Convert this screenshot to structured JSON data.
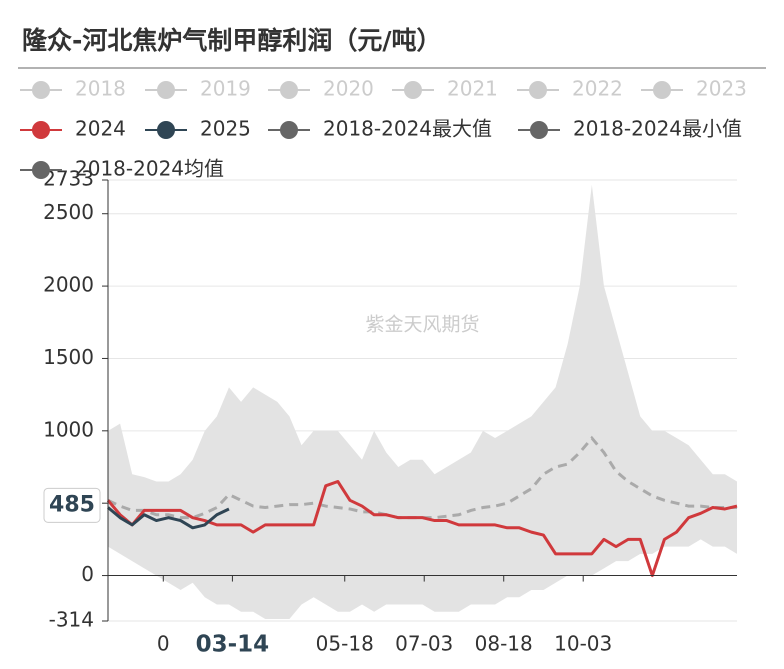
{
  "chart_data": {
    "type": "line",
    "title": "隆众-河北焦炉气制甲醇利润（元/吨）",
    "watermark": "紫金天风期货",
    "inactive_legend": [
      "2018",
      "2019",
      "2020",
      "2021",
      "2022",
      "2023"
    ],
    "inactive_color": "#cccccc",
    "x": [
      1,
      8,
      15,
      22,
      29,
      36,
      43,
      50,
      57,
      64,
      71,
      78,
      85,
      92,
      99,
      106,
      113,
      120,
      127,
      134,
      141,
      148,
      155,
      162,
      169,
      176,
      183,
      190,
      197,
      204,
      211,
      218,
      225,
      232,
      239,
      246,
      253,
      260,
      267,
      274,
      281,
      288,
      295,
      302,
      309,
      316,
      323,
      330,
      337,
      344,
      351,
      358,
      365
    ],
    "xlim": [
      1,
      365
    ],
    "xticks": [
      {
        "value": 33,
        "label": "0"
      },
      {
        "value": 73,
        "label": "03-14"
      },
      {
        "value": 138,
        "label": "05-18"
      },
      {
        "value": 184,
        "label": "07-03"
      },
      {
        "value": 230,
        "label": "08-18"
      },
      {
        "value": 276,
        "label": "10-03"
      }
    ],
    "bold_xtick_index": 1,
    "ylim": [
      -314,
      2733
    ],
    "yticks": [
      -314,
      0,
      500,
      1000,
      1500,
      2000,
      2500,
      2733
    ],
    "grid": true,
    "band_color": "#e3e3e3",
    "marker_value": 485,
    "series": [
      {
        "name": "2024",
        "color": "#d0393c",
        "style": "line",
        "values": [
          520,
          420,
          350,
          450,
          450,
          450,
          450,
          400,
          380,
          350,
          350,
          350,
          300,
          350,
          350,
          350,
          350,
          350,
          620,
          650,
          520,
          480,
          420,
          420,
          400,
          400,
          400,
          380,
          380,
          350,
          350,
          350,
          350,
          330,
          330,
          300,
          280,
          150,
          150,
          150,
          150,
          250,
          200,
          250,
          250,
          0,
          250,
          300,
          400,
          430,
          470,
          460,
          480
        ]
      },
      {
        "name": "2025",
        "color": "#2f4554",
        "style": "line",
        "values": [
          470,
          400,
          350,
          420,
          380,
          400,
          380,
          330,
          350,
          420,
          460,
          null,
          null,
          null,
          null,
          null,
          null,
          null,
          null,
          null,
          null,
          null,
          null,
          null,
          null,
          null,
          null,
          null,
          null,
          null,
          null,
          null,
          null,
          null,
          null,
          null,
          null,
          null,
          null,
          null,
          null,
          null,
          null,
          null,
          null,
          null,
          null,
          null,
          null,
          null,
          null,
          null,
          null
        ]
      },
      {
        "name": "2018-2024最大值",
        "color": "#666666",
        "style": "band-upper",
        "values": [
          1000,
          1050,
          700,
          680,
          650,
          650,
          700,
          800,
          1000,
          1100,
          1300,
          1200,
          1300,
          1250,
          1200,
          1100,
          900,
          1000,
          1000,
          1000,
          900,
          800,
          1000,
          850,
          750,
          800,
          800,
          700,
          750,
          800,
          850,
          1000,
          950,
          1000,
          1050,
          1100,
          1200,
          1300,
          1600,
          2000,
          2700,
          2000,
          1700,
          1400,
          1100,
          1000,
          1000,
          950,
          900,
          800,
          700,
          700,
          650
        ]
      },
      {
        "name": "2018-2024最小值",
        "color": "#666666",
        "style": "band-lower",
        "values": [
          200,
          150,
          100,
          50,
          0,
          -50,
          -100,
          -50,
          -150,
          -200,
          -200,
          -250,
          -250,
          -300,
          -300,
          -300,
          -200,
          -150,
          -200,
          -250,
          -250,
          -200,
          -250,
          -200,
          -200,
          -200,
          -200,
          -250,
          -250,
          -250,
          -200,
          -200,
          -200,
          -150,
          -150,
          -100,
          -100,
          -50,
          0,
          0,
          0,
          50,
          100,
          100,
          150,
          150,
          200,
          200,
          200,
          250,
          200,
          200,
          150
        ]
      },
      {
        "name": "2018-2024均值",
        "color": "#666666",
        "style": "dashed",
        "line_color": "#aaaaaa",
        "values": [
          520,
          480,
          450,
          450,
          420,
          420,
          400,
          400,
          430,
          470,
          560,
          520,
          480,
          470,
          480,
          490,
          490,
          500,
          480,
          470,
          460,
          440,
          440,
          420,
          400,
          400,
          400,
          400,
          410,
          420,
          450,
          470,
          480,
          500,
          550,
          600,
          700,
          750,
          770,
          850,
          950,
          850,
          720,
          650,
          600,
          550,
          520,
          500,
          480,
          480,
          470,
          470,
          470
        ]
      }
    ]
  }
}
